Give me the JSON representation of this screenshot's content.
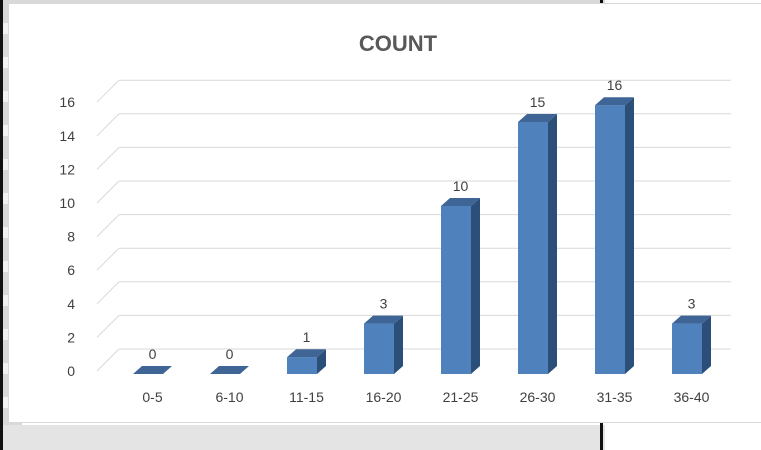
{
  "chart_data": {
    "type": "bar",
    "title": "COUNT",
    "categories": [
      "0-5",
      "6-10",
      "11-15",
      "16-20",
      "21-25",
      "26-30",
      "31-35",
      "36-40"
    ],
    "values": [
      0,
      0,
      1,
      3,
      10,
      15,
      16,
      3
    ],
    "data_labels": [
      "0",
      "0",
      "1",
      "3",
      "10",
      "15",
      "16",
      "3"
    ],
    "yticks": [
      "0",
      "2",
      "4",
      "6",
      "8",
      "10",
      "12",
      "14",
      "16"
    ],
    "ylim": [
      0,
      16
    ],
    "grid": true,
    "legend": "none",
    "style": "3d-column",
    "bar_color": "#4f81bd",
    "bar_side_color": "#2c4f79",
    "bar_top_color": "#3f6596",
    "grid_color": "#d9d9d9",
    "text_color": "#404040",
    "title_color": "#595959"
  }
}
